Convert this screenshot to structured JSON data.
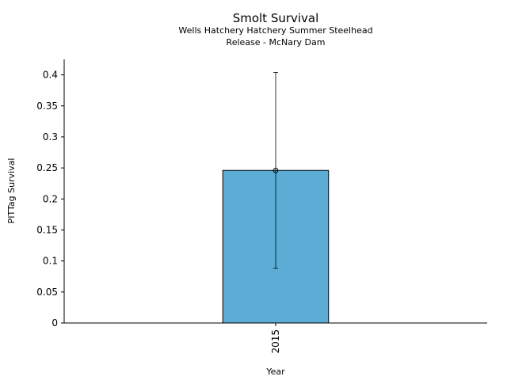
{
  "chart_data": {
    "type": "bar",
    "title": "Smolt Survival",
    "subtitle_lines": [
      "Wells Hatchery Hatchery Summer Steelhead",
      "Release - McNary Dam"
    ],
    "xlabel": "Year",
    "ylabel": "PITTag Survival",
    "categories": [
      "2015"
    ],
    "values": [
      0.246
    ],
    "error_low": [
      0.088
    ],
    "error_high": [
      0.404
    ],
    "ylim": [
      0,
      0.425
    ],
    "yticks": [
      0,
      0.05,
      0.1,
      0.15,
      0.2,
      0.25,
      0.3,
      0.35,
      0.4
    ],
    "ytick_labels": [
      "0",
      "0.05",
      "0.1",
      "0.15",
      "0.2",
      "0.25",
      "0.3",
      "0.35",
      "0.4"
    ],
    "grid": false,
    "legend": "none",
    "colors": {
      "bar": "#5badd6",
      "edge": "#000000",
      "error": "#000000"
    }
  }
}
